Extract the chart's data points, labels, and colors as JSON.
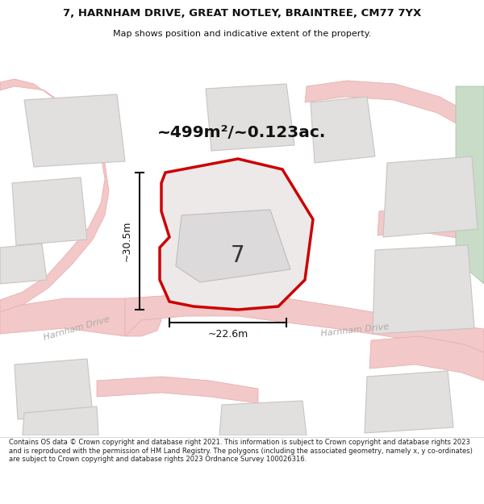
{
  "title_line1": "7, HARNHAM DRIVE, GREAT NOTLEY, BRAINTREE, CM77 7YX",
  "title_line2": "Map shows position and indicative extent of the property.",
  "area_text": "~499m²/~0.123ac.",
  "plot_number": "7",
  "dim_vertical": "~30.5m",
  "dim_horizontal": "~22.6m",
  "footer": "Contains OS data © Crown copyright and database right 2021. This information is subject to Crown copyright and database rights 2023 and is reproduced with the permission of HM Land Registry. The polygons (including the associated geometry, namely x, y co-ordinates) are subject to Crown copyright and database rights 2023 Ordnance Survey 100026316.",
  "road_color": "#f2c8c8",
  "road_edge": "#e8a8a8",
  "bld_fill": "#e2dfdf",
  "bld_edge": "#c8c4c4",
  "plot_fill": "#ede9e9",
  "red": "#cc0000",
  "green_fill": "#c8dcc8",
  "green_edge": "#a0c0a0",
  "gray_road_fill": "#e8e4e4",
  "gray_road_edge": "#d0cccc",
  "dim_color": "#111111",
  "road_text_color": "#b0aaaa"
}
